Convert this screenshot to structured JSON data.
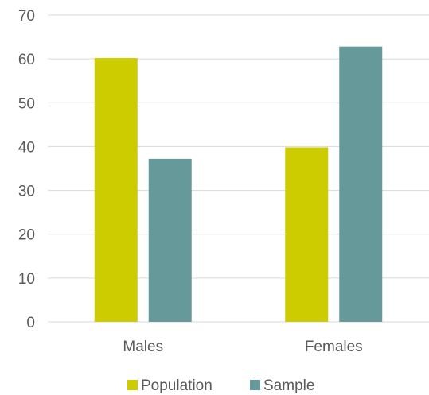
{
  "chart_data": {
    "type": "bar",
    "categories": [
      "Males",
      "Females"
    ],
    "series": [
      {
        "name": "Population",
        "values": [
          60.2,
          39.8
        ],
        "color": "#cccc00"
      },
      {
        "name": "Sample",
        "values": [
          37.2,
          62.8
        ],
        "color": "#669999"
      }
    ],
    "title": "",
    "xlabel": "",
    "ylabel": "",
    "ylim": [
      0,
      70
    ],
    "yticks": [
      0,
      10,
      20,
      30,
      40,
      50,
      60,
      70
    ],
    "grid": true,
    "legend_position": "bottom"
  }
}
